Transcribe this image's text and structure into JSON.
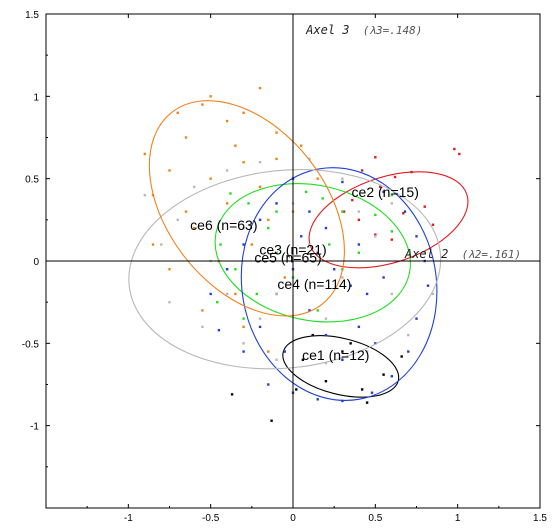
{
  "chart_data": {
    "type": "scatter",
    "xlim": [
      -1.5,
      1.5
    ],
    "ylim": [
      -1.5,
      1.5
    ],
    "x_ticks": [
      "-1",
      "-0.5",
      "0",
      "0.5",
      "1",
      "1.5"
    ],
    "y_ticks": [
      "1.5",
      "1",
      "0.5",
      "0",
      "-0.5",
      "-1"
    ],
    "x_tick_values": [
      -1,
      -0.5,
      0,
      0.5,
      1,
      1.5
    ],
    "y_tick_values": [
      1.5,
      1,
      0.5,
      0,
      -0.5,
      -1
    ],
    "xlabel": {
      "name": "Axel 2",
      "sub": "(λ2=.161)"
    },
    "ylabel": {
      "name": "Axel 3",
      "sub": "(λ3=.148)"
    },
    "grid": false,
    "clusters": [
      {
        "label": "ce1 (n=12)",
        "color": "#000000",
        "cx": 0.29,
        "cy": -0.64,
        "rx": 0.36,
        "ry": 0.17,
        "angle": 14,
        "lx": 0.26,
        "ly": -0.57,
        "points": [
          [
            -0.37,
            -0.81
          ],
          [
            -0.13,
            -0.97
          ],
          [
            0.06,
            -0.6
          ],
          [
            0.2,
            -0.73
          ],
          [
            0.3,
            -0.55
          ],
          [
            0.45,
            -0.86
          ],
          [
            0.55,
            -0.69
          ],
          [
            0.66,
            -0.58
          ],
          [
            0.12,
            -0.45
          ],
          [
            0.35,
            -0.5
          ],
          [
            0.02,
            -0.78
          ],
          [
            0.42,
            -0.78
          ]
        ]
      },
      {
        "label": "ce2 (n=15)",
        "color": "#e41a1c",
        "cx": 0.58,
        "cy": 0.25,
        "rx": 0.5,
        "ry": 0.26,
        "angle": -18,
        "lx": 0.56,
        "ly": 0.42,
        "points": [
          [
            0.36,
            0.37
          ],
          [
            0.42,
            0.55
          ],
          [
            0.5,
            0.63
          ],
          [
            0.62,
            0.51
          ],
          [
            0.67,
            0.29
          ],
          [
            0.72,
            0.54
          ],
          [
            0.8,
            0.33
          ],
          [
            0.5,
            0.16
          ],
          [
            0.6,
            0.13
          ],
          [
            0.98,
            0.68
          ],
          [
            1.01,
            0.65
          ],
          [
            0.85,
            0.22
          ],
          [
            0.4,
            0.25
          ],
          [
            0.31,
            0.3
          ],
          [
            0.53,
            0.45
          ]
        ]
      },
      {
        "label": "ce3 (n=21)",
        "color": "#22dd22",
        "cx": 0.12,
        "cy": 0.05,
        "rx": 0.6,
        "ry": 0.41,
        "angle": 12,
        "lx": 0.0,
        "ly": 0.07,
        "points": [
          [
            -0.38,
            0.41
          ],
          [
            -0.27,
            0.35
          ],
          [
            -0.1,
            0.3
          ],
          [
            0.08,
            0.42
          ],
          [
            0.18,
            0.38
          ],
          [
            0.3,
            0.3
          ],
          [
            0.5,
            0.28
          ],
          [
            0.6,
            0.18
          ],
          [
            -0.44,
            0.1
          ],
          [
            -0.35,
            -0.05
          ],
          [
            -0.22,
            -0.2
          ],
          [
            -0.1,
            0.05
          ],
          [
            0.0,
            -0.1
          ],
          [
            0.22,
            0.1
          ],
          [
            0.3,
            -0.05
          ],
          [
            -0.3,
            -0.35
          ],
          [
            -0.46,
            -0.25
          ],
          [
            0.15,
            -0.3
          ],
          [
            -0.15,
            0.2
          ],
          [
            0.4,
            0.05
          ],
          [
            0.6,
            0.4
          ]
        ]
      },
      {
        "label": "ce4 (n=114)",
        "color": "#1f3fd8",
        "cx": 0.28,
        "cy": -0.14,
        "rx": 0.59,
        "ry": 0.71,
        "angle": -10,
        "lx": 0.13,
        "ly": -0.14,
        "points": [
          [
            0.0,
            0.5
          ],
          [
            0.3,
            0.48
          ],
          [
            0.55,
            0.42
          ],
          [
            0.68,
            0.3
          ],
          [
            0.75,
            0.15
          ],
          [
            0.8,
            0.0
          ],
          [
            0.82,
            -0.15
          ],
          [
            0.75,
            -0.35
          ],
          [
            0.7,
            -0.55
          ],
          [
            0.6,
            -0.7
          ],
          [
            0.48,
            -0.8
          ],
          [
            0.3,
            -0.85
          ],
          [
            0.15,
            -0.84
          ],
          [
            0.0,
            -0.8
          ],
          [
            -0.15,
            -0.75
          ],
          [
            -0.3,
            -0.55
          ],
          [
            -0.45,
            -0.42
          ],
          [
            -0.5,
            -0.2
          ],
          [
            -0.4,
            -0.05
          ],
          [
            -0.3,
            0.1
          ],
          [
            -0.2,
            0.25
          ],
          [
            -0.1,
            0.35
          ],
          [
            0.05,
            0.15
          ],
          [
            0.15,
            0.05
          ],
          [
            0.25,
            -0.05
          ],
          [
            0.35,
            -0.15
          ],
          [
            0.45,
            -0.2
          ],
          [
            0.55,
            -0.1
          ],
          [
            0.1,
            -0.3
          ],
          [
            0.2,
            -0.45
          ],
          [
            0.3,
            -0.6
          ],
          [
            0.4,
            -0.4
          ],
          [
            0.5,
            -0.5
          ],
          [
            -0.05,
            -0.55
          ],
          [
            -0.2,
            -0.4
          ],
          [
            -0.1,
            -0.2
          ],
          [
            0.0,
            -0.05
          ],
          [
            0.1,
            0.3
          ],
          [
            0.2,
            0.2
          ],
          [
            0.4,
            0.1
          ]
        ]
      },
      {
        "label": "ce5 (n=65)",
        "color": "#b8b8b8",
        "cx": -0.05,
        "cy": -0.05,
        "rx": 0.95,
        "ry": 0.6,
        "angle": -6,
        "lx": -0.03,
        "ly": 0.02,
        "points": [
          [
            -0.9,
            0.4
          ],
          [
            -0.8,
            0.1
          ],
          [
            -0.75,
            -0.25
          ],
          [
            -0.6,
            0.45
          ],
          [
            -0.55,
            -0.4
          ],
          [
            -0.4,
            0.55
          ],
          [
            -0.3,
            -0.5
          ],
          [
            -0.2,
            0.6
          ],
          [
            -0.1,
            -0.6
          ],
          [
            0.1,
            0.62
          ],
          [
            0.2,
            -0.62
          ],
          [
            0.3,
            0.5
          ],
          [
            0.45,
            -0.55
          ],
          [
            0.6,
            0.35
          ],
          [
            0.7,
            -0.45
          ],
          [
            0.8,
            0.05
          ],
          [
            0.85,
            -0.2
          ],
          [
            -0.5,
            0.0
          ],
          [
            -0.3,
            0.2
          ],
          [
            -0.1,
            -0.2
          ],
          [
            0.1,
            0.1
          ],
          [
            0.3,
            -0.1
          ],
          [
            0.5,
            0.15
          ],
          [
            -0.7,
            0.25
          ],
          [
            -0.4,
            -0.2
          ],
          [
            0.0,
            0.35
          ],
          [
            0.2,
            -0.35
          ],
          [
            0.4,
            0.3
          ],
          [
            0.6,
            -0.2
          ],
          [
            -0.2,
            -0.35
          ]
        ]
      },
      {
        "label": "ce6 (n=63)",
        "color": "#f0821e",
        "cx": -0.28,
        "cy": 0.32,
        "rx": 0.48,
        "ry": 0.74,
        "angle": -38,
        "lx": -0.42,
        "ly": 0.22,
        "points": [
          [
            -0.55,
            0.95
          ],
          [
            -0.4,
            0.85
          ],
          [
            -0.3,
            0.9
          ],
          [
            -0.2,
            1.05
          ],
          [
            -0.1,
            0.78
          ],
          [
            -0.65,
            0.75
          ],
          [
            -0.75,
            0.55
          ],
          [
            -0.85,
            0.4
          ],
          [
            -0.85,
            0.1
          ],
          [
            -0.75,
            -0.05
          ],
          [
            -0.6,
            0.2
          ],
          [
            -0.5,
            0.5
          ],
          [
            -0.4,
            0.35
          ],
          [
            -0.3,
            0.6
          ],
          [
            -0.2,
            0.45
          ],
          [
            -0.1,
            0.62
          ],
          [
            0.05,
            0.7
          ],
          [
            0.15,
            0.5
          ],
          [
            -0.45,
            0.0
          ],
          [
            -0.35,
            -0.2
          ],
          [
            -0.25,
            0.1
          ],
          [
            -0.15,
            0.25
          ],
          [
            -0.05,
            -0.1
          ],
          [
            -0.55,
            -0.3
          ],
          [
            -0.65,
            0.3
          ],
          [
            -0.9,
            0.65
          ],
          [
            -0.3,
            -0.4
          ],
          [
            -0.15,
            -0.55
          ],
          [
            0.0,
            0.3
          ],
          [
            -0.7,
            0.9
          ],
          [
            -0.5,
            1.0
          ],
          [
            -0.35,
            0.7
          ]
        ]
      }
    ]
  }
}
